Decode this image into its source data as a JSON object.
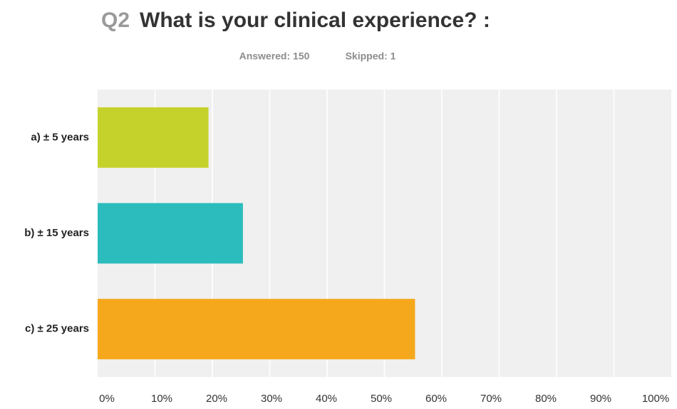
{
  "chart_data": {
    "type": "barh",
    "question_number": "Q2",
    "title": "What is your clinical experience? :",
    "answered": "Answered: 150",
    "skipped": "Skipped: 1",
    "categories": [
      "a) ± 5 years",
      "b) ± 15 years",
      "c) ± 25 years"
    ],
    "values": [
      19.33,
      25.33,
      55.33
    ],
    "colors": [
      "#c6d22c",
      "#2dbcbd",
      "#f6a81d"
    ],
    "xlim": [
      0,
      100
    ],
    "xticks": [
      {
        "value": 0,
        "label": "0%"
      },
      {
        "value": 10,
        "label": "10%"
      },
      {
        "value": 20,
        "label": "20%"
      },
      {
        "value": 30,
        "label": "30%"
      },
      {
        "value": 40,
        "label": "40%"
      },
      {
        "value": 50,
        "label": "50%"
      },
      {
        "value": 60,
        "label": "60%"
      },
      {
        "value": 70,
        "label": "70%"
      },
      {
        "value": 80,
        "label": "80%"
      },
      {
        "value": 90,
        "label": "90%"
      },
      {
        "value": 100,
        "label": "100%"
      }
    ],
    "grid": true
  }
}
